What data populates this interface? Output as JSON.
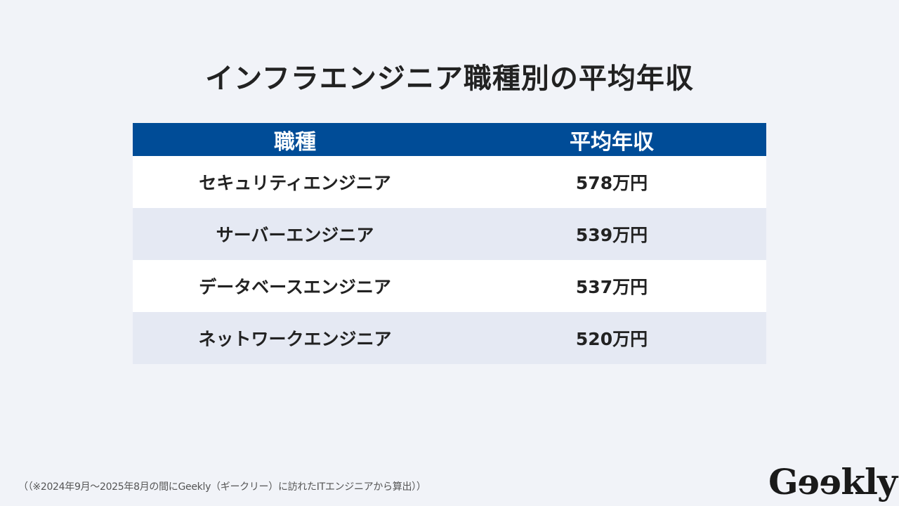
{
  "title": "インフラエンジニア職種別の平均年収",
  "table": {
    "headers": {
      "job": "職種",
      "salary": "平均年収"
    },
    "rows": [
      {
        "job": "セキュリティエンジニア",
        "salary": "578万円"
      },
      {
        "job": "サーバーエンジニア",
        "salary": "539万円"
      },
      {
        "job": "データベースエンジニア",
        "salary": "537万円"
      },
      {
        "job": "ネットワークエンジニア",
        "salary": "520万円"
      }
    ]
  },
  "footnote": "（（※2024年9月～2025年8月の間にGeekly（ギークリー）に訪れたITエンジニアから算出））",
  "logo": {
    "text": "Geekly",
    "parts": [
      "G",
      "e",
      "e",
      "kly"
    ]
  },
  "colors": {
    "background": "#f1f3f8",
    "header": "#004c97",
    "row_odd": "#ffffff",
    "row_even": "#e5e9f3",
    "text": "#222222"
  }
}
